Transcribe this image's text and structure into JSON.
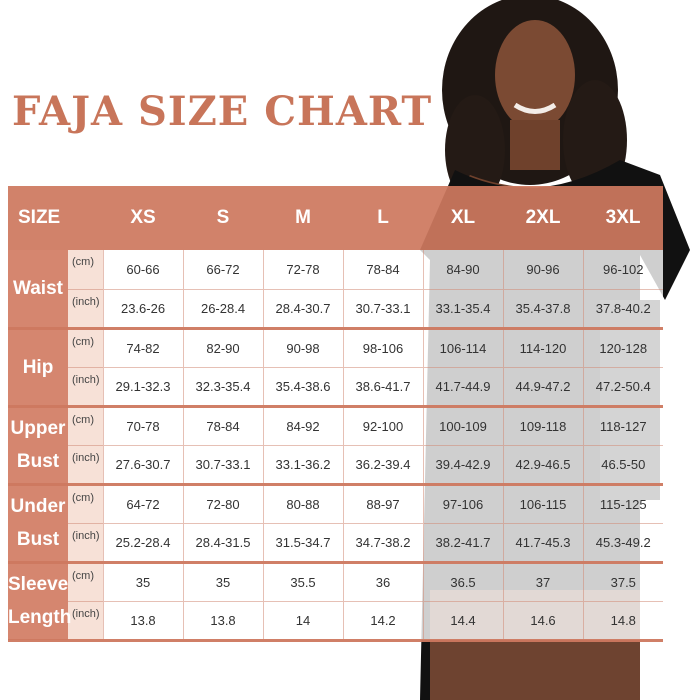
{
  "title": "FAJA SIZE CHART",
  "colors": {
    "accent": "#c8755a",
    "header_bg": "#cd785f",
    "unit_bg": "#f6ded4"
  },
  "header": {
    "size_label": "SIZE",
    "sizes": [
      "XS",
      "S",
      "M",
      "L",
      "XL",
      "2XL",
      "3XL"
    ]
  },
  "units": {
    "cm": "(cm)",
    "inch": "(inch)"
  },
  "rows": [
    {
      "label": "Waist",
      "cm": [
        "60-66",
        "66-72",
        "72-78",
        "78-84",
        "84-90",
        "90-96",
        "96-102"
      ],
      "inch": [
        "23.6-26",
        "26-28.4",
        "28.4-30.7",
        "30.7-33.1",
        "33.1-35.4",
        "35.4-37.8",
        "37.8-40.2"
      ]
    },
    {
      "label": "Hip",
      "cm": [
        "74-82",
        "82-90",
        "90-98",
        "98-106",
        "106-114",
        "114-120",
        "120-128"
      ],
      "inch": [
        "29.1-32.3",
        "32.3-35.4",
        "35.4-38.6",
        "38.6-41.7",
        "41.7-44.9",
        "44.9-47.2",
        "47.2-50.4"
      ]
    },
    {
      "label_line1": "Upper",
      "label_line2": "Bust",
      "cm": [
        "70-78",
        "78-84",
        "84-92",
        "92-100",
        "100-109",
        "109-118",
        "118-127"
      ],
      "inch": [
        "27.6-30.7",
        "30.7-33.1",
        "33.1-36.2",
        "36.2-39.4",
        "39.4-42.9",
        "42.9-46.5",
        "46.5-50"
      ]
    },
    {
      "label_line1": "Under",
      "label_line2": "Bust",
      "cm": [
        "64-72",
        "72-80",
        "80-88",
        "88-97",
        "97-106",
        "106-115",
        "115-125"
      ],
      "inch": [
        "25.2-28.4",
        "28.4-31.5",
        "31.5-34.7",
        "34.7-38.2",
        "38.2-41.7",
        "41.7-45.3",
        "45.3-49.2"
      ]
    },
    {
      "label_line1": "Sleeve",
      "label_line2": "Length",
      "cm": [
        "35",
        "35",
        "35.5",
        "36",
        "36.5",
        "37",
        "37.5"
      ],
      "inch": [
        "13.8",
        "13.8",
        "14",
        "14.2",
        "14.4",
        "14.6",
        "14.8"
      ]
    }
  ]
}
